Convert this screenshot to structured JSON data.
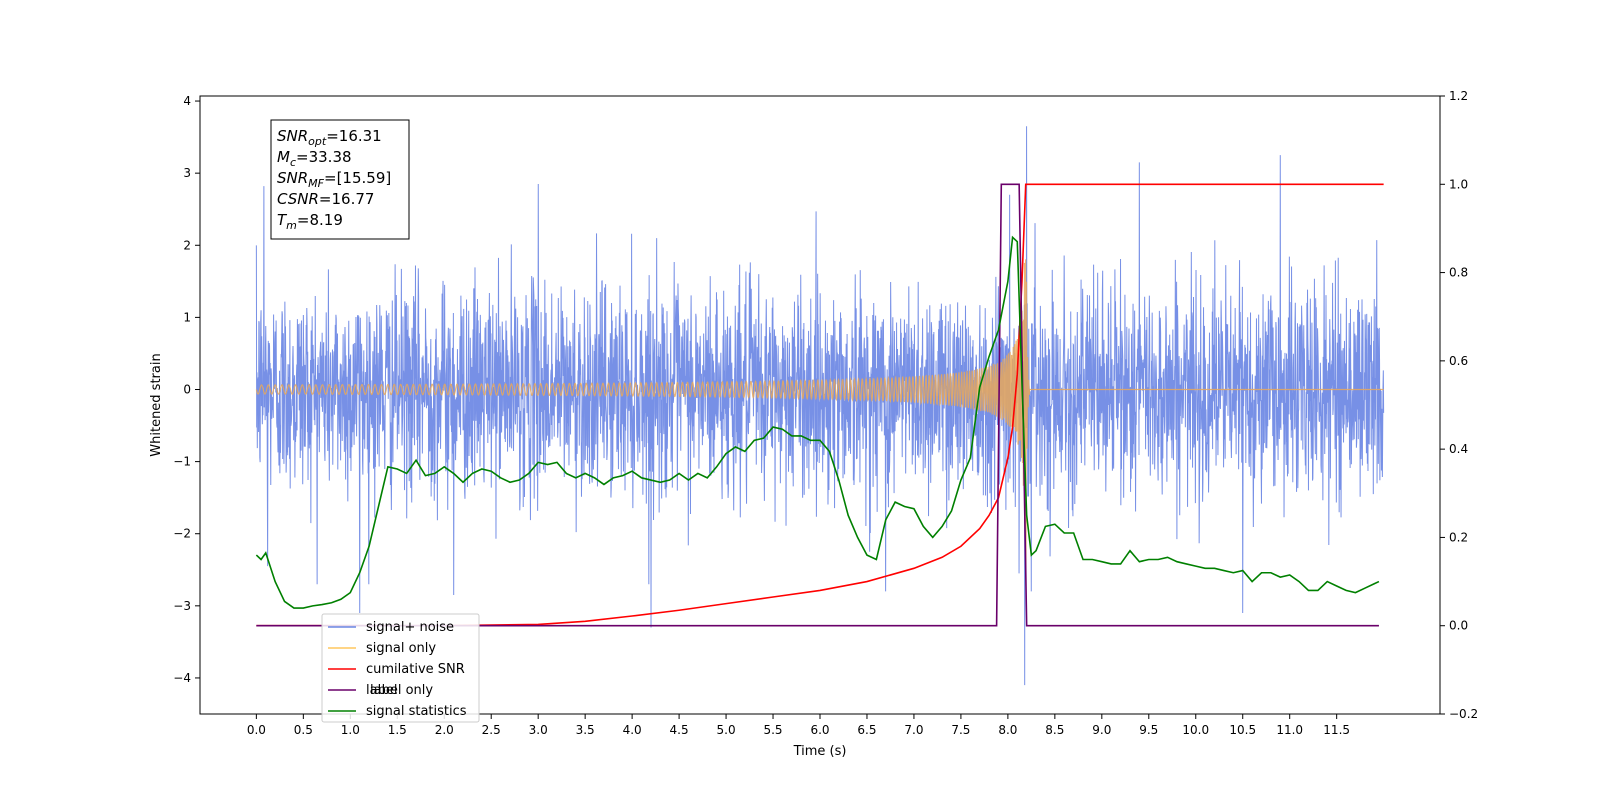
{
  "chart_data": {
    "type": "line",
    "xlabel": "Time (s)",
    "ylabel": "Whitened strain",
    "xlim": [
      -0.6,
      12.6
    ],
    "ylim": [
      -4.5,
      4.07
    ],
    "y2lim": [
      -0.2,
      1.2
    ],
    "x_ticks": [
      "0.0",
      "0.5",
      "1.0",
      "1.5",
      "2.0",
      "2.5",
      "3.0",
      "3.5",
      "4.0",
      "4.5",
      "5.0",
      "5.5",
      "6.0",
      "6.5",
      "7.0",
      "7.5",
      "8.0",
      "8.5",
      "9.0",
      "9.5",
      "10.0",
      "10.5",
      "11.0",
      "11.5"
    ],
    "y_ticks": [
      "4",
      "3",
      "2",
      "1",
      "0",
      "−1",
      "−2",
      "−3",
      "−4"
    ],
    "y2_ticks": [
      "1.2",
      "1.0",
      "0.8",
      "0.6",
      "0.4",
      "0.2",
      "0.0",
      "−0.2"
    ],
    "info_box": [
      {
        "base": "SNR",
        "sub": "opt",
        "value": "=16.31"
      },
      {
        "base": "M",
        "sub": "c",
        "value": "=33.38"
      },
      {
        "base": "SNR",
        "sub": "MF",
        "value": "=[15.59]"
      },
      {
        "base": "CSNR",
        "sub": "",
        "value": "=16.77"
      },
      {
        "base": "T",
        "sub": "m",
        "value": "=8.19"
      }
    ],
    "legend": {
      "placement": "lower-left",
      "entries": [
        {
          "label": "signal+ noise",
          "color": "#6b87e4"
        },
        {
          "label": "signal only",
          "color": "#ffc75f"
        },
        {
          "label": "cumilative SNR",
          "color": "#ff0000"
        },
        {
          "label": "label",
          "color": "#6a006a"
        },
        {
          "label": "signal statistics",
          "color": "#008000"
        }
      ],
      "hidden_label": "label only"
    },
    "series": [
      {
        "name": "signal+ noise",
        "axis": "left",
        "color": "#6b87e4",
        "kind": "noise",
        "t_range": [
          0.0,
          12.0
        ],
        "std": 0.72,
        "spikes": [
          [
            0.08,
            2.82
          ],
          [
            0.12,
            -2.45
          ],
          [
            1.1,
            -3.1
          ],
          [
            2.1,
            -2.85
          ],
          [
            3.0,
            2.85
          ],
          [
            4.2,
            -3.3
          ],
          [
            8.02,
            2.7
          ],
          [
            8.12,
            -2.55
          ],
          [
            8.2,
            3.65
          ],
          [
            8.18,
            -4.1
          ],
          [
            8.25,
            -2.8
          ],
          [
            9.4,
            3.15
          ],
          [
            10.9,
            3.25
          ],
          [
            10.5,
            -3.1
          ],
          [
            6.7,
            -2.8
          ]
        ]
      },
      {
        "name": "signal only",
        "axis": "left",
        "color": "#e8a85a",
        "kind": "chirp",
        "t_range": [
          0.0,
          12.0
        ],
        "merger": 8.19,
        "peak": 3.35
      },
      {
        "name": "cumilative SNR",
        "axis": "right",
        "color": "#ff0000",
        "x": [
          0.0,
          2.0,
          3.0,
          3.5,
          4.0,
          4.5,
          5.0,
          5.5,
          6.0,
          6.5,
          7.0,
          7.3,
          7.5,
          7.7,
          7.8,
          7.9,
          8.0,
          8.05,
          8.1,
          8.15,
          8.19,
          12.0
        ],
        "y": [
          0.0,
          0.0,
          0.003,
          0.01,
          0.022,
          0.035,
          0.05,
          0.065,
          0.08,
          0.1,
          0.13,
          0.155,
          0.18,
          0.22,
          0.25,
          0.29,
          0.38,
          0.45,
          0.57,
          0.78,
          1.0,
          1.0
        ]
      },
      {
        "name": "label",
        "axis": "right",
        "color": "#6a006a",
        "x": [
          0.0,
          7.88,
          7.93,
          8.12,
          8.2,
          11.95
        ],
        "y": [
          0.0,
          0.0,
          1.0,
          1.0,
          0.0,
          0.0
        ]
      },
      {
        "name": "signal statistics",
        "axis": "right",
        "color": "#008000",
        "x": [
          0.0,
          0.05,
          0.1,
          0.2,
          0.3,
          0.4,
          0.5,
          0.6,
          0.7,
          0.8,
          0.9,
          1.0,
          1.1,
          1.2,
          1.3,
          1.4,
          1.5,
          1.6,
          1.7,
          1.8,
          1.9,
          2.0,
          2.1,
          2.2,
          2.3,
          2.4,
          2.5,
          2.6,
          2.7,
          2.8,
          2.9,
          3.0,
          3.1,
          3.2,
          3.3,
          3.4,
          3.5,
          3.6,
          3.7,
          3.8,
          3.9,
          4.0,
          4.1,
          4.2,
          4.3,
          4.4,
          4.5,
          4.6,
          4.7,
          4.8,
          4.9,
          5.0,
          5.1,
          5.2,
          5.3,
          5.4,
          5.5,
          5.6,
          5.7,
          5.8,
          5.9,
          6.0,
          6.1,
          6.2,
          6.3,
          6.4,
          6.5,
          6.6,
          6.7,
          6.8,
          6.9,
          7.0,
          7.1,
          7.2,
          7.3,
          7.4,
          7.5,
          7.6,
          7.7,
          7.8,
          7.9,
          8.0,
          8.05,
          8.1,
          8.15,
          8.2,
          8.25,
          8.3,
          8.4,
          8.5,
          8.6,
          8.7,
          8.8,
          8.9,
          9.0,
          9.1,
          9.2,
          9.3,
          9.4,
          9.5,
          9.6,
          9.7,
          9.8,
          9.9,
          10.0,
          10.1,
          10.2,
          10.3,
          10.4,
          10.5,
          10.6,
          10.7,
          10.8,
          10.9,
          11.0,
          11.1,
          11.2,
          11.3,
          11.4,
          11.5,
          11.6,
          11.7,
          11.8,
          11.9,
          11.95
        ],
        "y": [
          0.16,
          0.15,
          0.165,
          0.1,
          0.055,
          0.04,
          0.04,
          0.045,
          0.048,
          0.052,
          0.06,
          0.075,
          0.12,
          0.18,
          0.27,
          0.36,
          0.355,
          0.345,
          0.375,
          0.34,
          0.345,
          0.36,
          0.345,
          0.325,
          0.345,
          0.355,
          0.35,
          0.335,
          0.325,
          0.33,
          0.345,
          0.37,
          0.365,
          0.37,
          0.345,
          0.335,
          0.345,
          0.335,
          0.32,
          0.335,
          0.34,
          0.35,
          0.335,
          0.33,
          0.325,
          0.33,
          0.345,
          0.33,
          0.345,
          0.335,
          0.36,
          0.39,
          0.405,
          0.395,
          0.42,
          0.425,
          0.45,
          0.445,
          0.43,
          0.43,
          0.42,
          0.42,
          0.395,
          0.33,
          0.25,
          0.2,
          0.16,
          0.15,
          0.24,
          0.28,
          0.27,
          0.265,
          0.225,
          0.2,
          0.225,
          0.26,
          0.33,
          0.38,
          0.54,
          0.61,
          0.67,
          0.78,
          0.88,
          0.87,
          0.55,
          0.25,
          0.16,
          0.17,
          0.225,
          0.23,
          0.21,
          0.21,
          0.15,
          0.15,
          0.145,
          0.14,
          0.14,
          0.17,
          0.145,
          0.15,
          0.15,
          0.155,
          0.145,
          0.14,
          0.135,
          0.13,
          0.13,
          0.125,
          0.12,
          0.125,
          0.1,
          0.12,
          0.12,
          0.11,
          0.115,
          0.1,
          0.08,
          0.08,
          0.1,
          0.09,
          0.08,
          0.075,
          0.085,
          0.095,
          0.1
        ]
      }
    ]
  }
}
